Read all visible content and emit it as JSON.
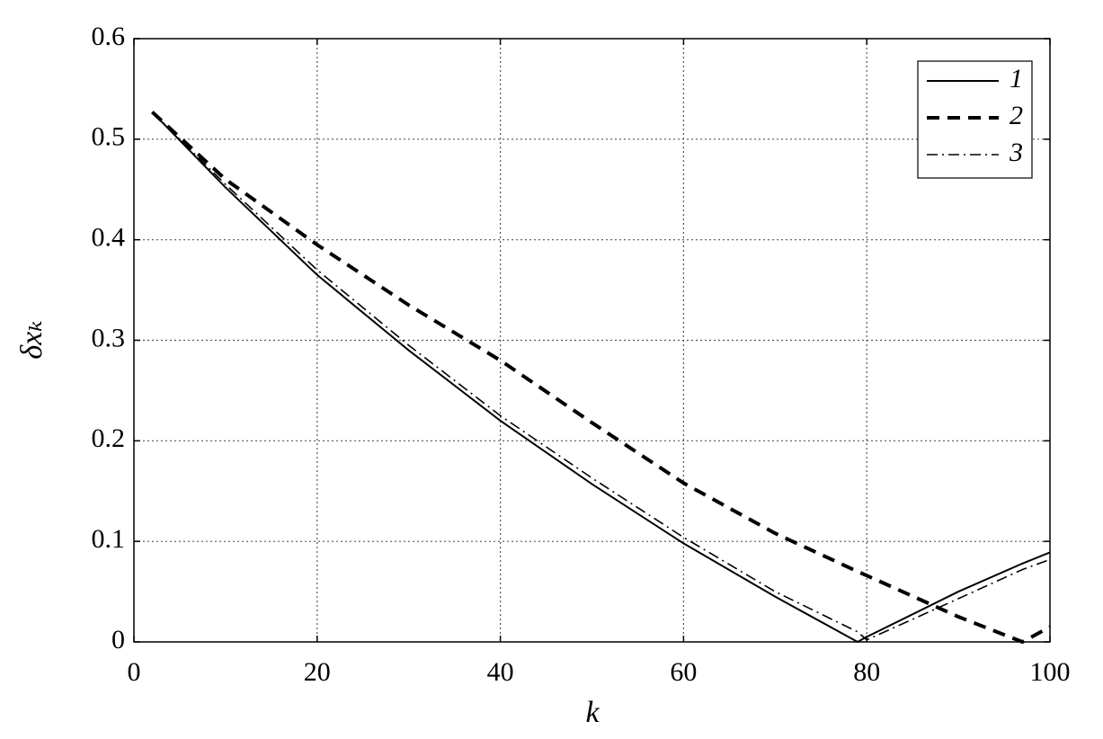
{
  "chart_data": {
    "type": "line",
    "xlabel": "k",
    "ylabel": "δxₖ",
    "x": [
      2,
      10,
      20,
      30,
      40,
      50,
      60,
      70,
      79,
      80,
      90,
      97,
      100
    ],
    "series": [
      {
        "name": "1",
        "color": "#000000",
        "dash": "solid",
        "linewidth": 2,
        "values": [
          0.527,
          0.452,
          0.365,
          0.29,
          0.22,
          0.157,
          0.098,
          0.045,
          0.0,
          0.005,
          0.05,
          0.078,
          0.089
        ]
      },
      {
        "name": "2",
        "color": "#000000",
        "dash": "dashed",
        "linewidth": 4,
        "values": [
          0.527,
          0.46,
          0.395,
          0.335,
          0.28,
          0.218,
          0.158,
          0.108,
          0.07,
          0.066,
          0.025,
          0.0,
          0.015
        ]
      },
      {
        "name": "3",
        "color": "#000000",
        "dash": "dashdot",
        "linewidth": 1.6,
        "values": [
          0.527,
          0.455,
          0.37,
          0.295,
          0.225,
          0.163,
          0.104,
          0.05,
          0.01,
          0.002,
          0.043,
          0.072,
          0.082
        ]
      }
    ],
    "xlim": [
      0,
      100
    ],
    "xticks": [
      0,
      20,
      40,
      60,
      80,
      100
    ],
    "ylim": [
      0,
      0.6
    ],
    "yticks": [
      0,
      0.1,
      0.2,
      0.3,
      0.4,
      0.5,
      0.6
    ],
    "grid": true,
    "legend": "upper right"
  }
}
